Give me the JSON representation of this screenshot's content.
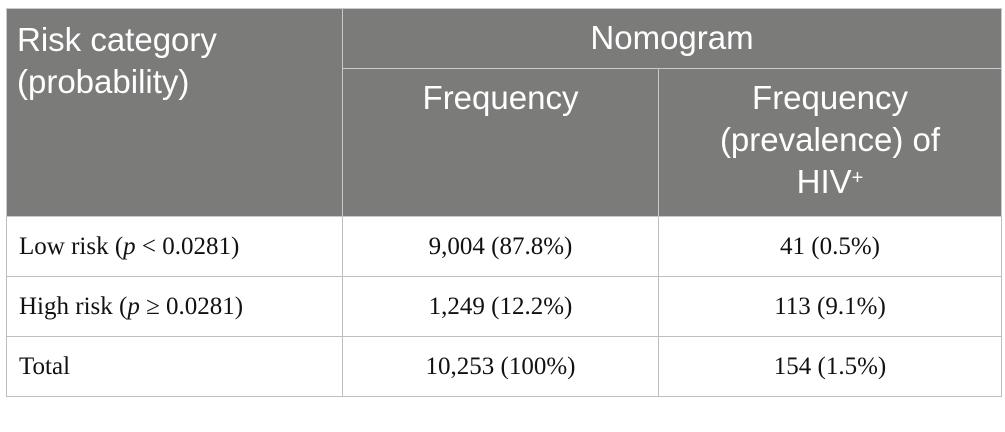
{
  "header": {
    "risk_category_line1": "Risk category",
    "risk_category_line2": "(probability)",
    "group": "Nomogram",
    "col_frequency": "Frequency",
    "col_prev_line1": "Frequency",
    "col_prev_line2": "(prevalence) of",
    "col_prev_line3": "HIV",
    "col_prev_sup": "+"
  },
  "rows": [
    {
      "label_pre": "Low risk (",
      "label_var": "p",
      "label_post": " < 0.0281)",
      "frequency": "9,004 (87.8%)",
      "prevalence": "41 (0.5%)"
    },
    {
      "label_pre": "High risk (",
      "label_var": "p",
      "label_post": " ≥ 0.0281)",
      "frequency": "1,249 (12.2%)",
      "prevalence": "113 (9.1%)"
    },
    {
      "label_pre": "Total",
      "label_var": "",
      "label_post": "",
      "frequency": "10,253 (100%)",
      "prevalence": "154 (1.5%)"
    }
  ]
}
